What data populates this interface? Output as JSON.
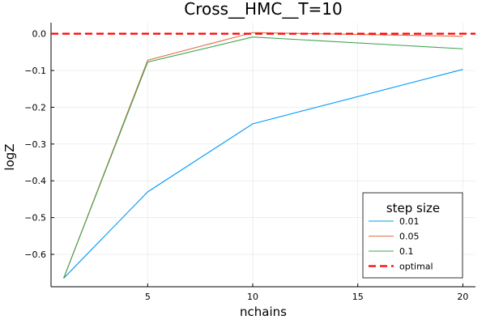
{
  "chart_data": {
    "type": "line",
    "title": "Cross__HMC__T=10",
    "xlabel": "nchains",
    "ylabel": "logZ",
    "x": [
      1,
      5,
      10,
      20
    ],
    "xlim": [
      0.4,
      20.6
    ],
    "ylim": [
      -0.688,
      0.03
    ],
    "xticks": [
      5,
      10,
      15,
      20
    ],
    "xtick_labels": [
      "5",
      "10",
      "15",
      "20"
    ],
    "yticks": [
      0.0,
      -0.1,
      -0.2,
      -0.3,
      -0.4,
      -0.5,
      -0.6
    ],
    "ytick_labels": [
      "0.0",
      "−0.1",
      "−0.2",
      "−0.3",
      "−0.4",
      "−0.5",
      "−0.6"
    ],
    "grid": true,
    "legend": {
      "title": "step size",
      "position": "bottom-right"
    },
    "series": [
      {
        "name": "0.01",
        "color": "#009AFA",
        "values": [
          -0.665,
          -0.43,
          -0.245,
          -0.097
        ]
      },
      {
        "name": "0.05",
        "color": "#E26F46",
        "values": [
          -0.665,
          -0.072,
          0.003,
          -0.007
        ]
      },
      {
        "name": "0.1",
        "color": "#3EA44E",
        "values": [
          -0.665,
          -0.077,
          -0.009,
          -0.041
        ]
      }
    ],
    "reference_line": {
      "name": "optimal",
      "y": 0.0,
      "color": "#FF0000",
      "style": "dashed"
    }
  }
}
